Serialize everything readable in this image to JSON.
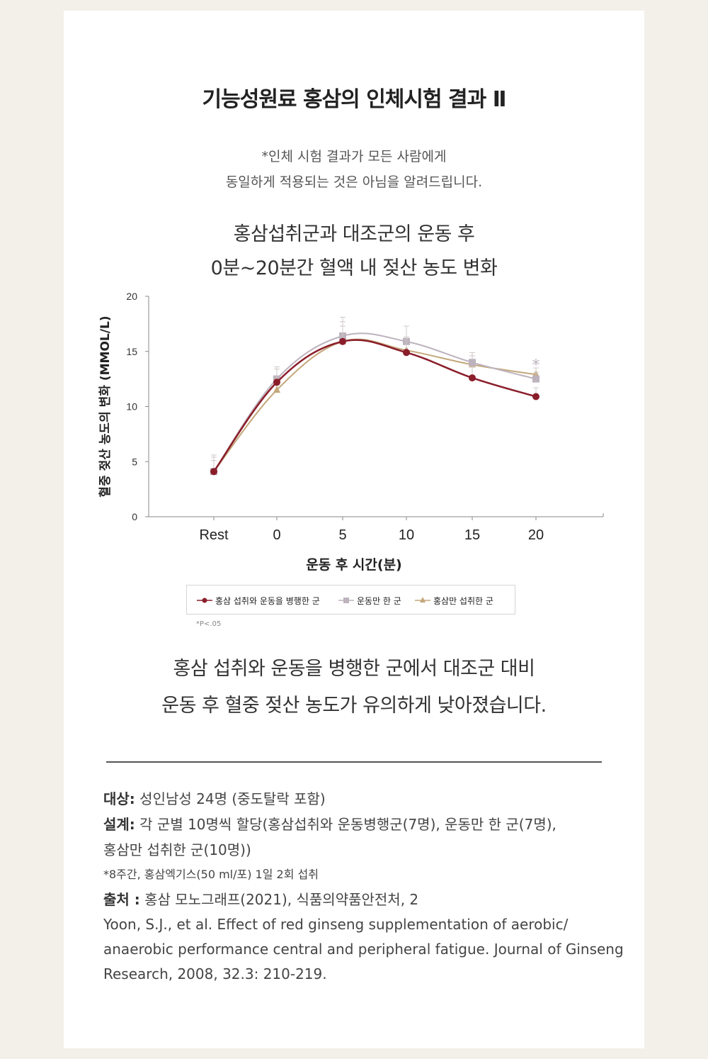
{
  "title": "기능성원료 홍삼의 인체시험 결과 Ⅱ",
  "disclaimer": [
    "*인체 시험 결과가 모든 사람에게",
    "동일하게 적용되는 것은 아님을 알려드립니다."
  ],
  "chart_title": [
    "홍삼섭취군과 대조군의 운동 후",
    "0분~20분간 혈액 내 젖산 농도 변화"
  ],
  "chart_data": {
    "type": "line",
    "categories": [
      "Rest",
      "0",
      "5",
      "10",
      "15",
      "20"
    ],
    "xlabel": "운동 후 시간(분)",
    "ylabel": "혈중 젖산 농도의 변화 (MMOL/L)",
    "ylim": [
      0,
      20
    ],
    "yticks": [
      "0",
      "5",
      "10",
      "15",
      "20"
    ],
    "series": [
      {
        "name": "홍삼 섭취와 운동을 병행한 군",
        "values": [
          4.1,
          12.2,
          15.9,
          14.9,
          12.6,
          10.9
        ],
        "color": "#8b1e2b",
        "marker": "circle"
      },
      {
        "name": "운동만 한 군",
        "values": [
          4.1,
          12.5,
          16.4,
          15.9,
          14.0,
          12.5
        ],
        "color": "#bdb3bd",
        "marker": "square"
      },
      {
        "name": "홍삼만 섭취한 군",
        "values": [
          4.1,
          11.5,
          15.9,
          15.1,
          13.8,
          12.9
        ],
        "color": "#c4a77a",
        "marker": "triangle"
      }
    ],
    "annotation": "*",
    "legend": "bottom"
  },
  "footnote": "*P<.05",
  "summary": [
    "홍삼 섭취와 운동을 병행한 군에서 대조군 대비",
    "운동 후 혈중 젖산 농도가 유의하게 낮아졌습니다."
  ],
  "refs": {
    "subject_label": "대상:",
    "subject_text": " 성인남성 24명 (중도탈락 포함)",
    "design_label": "설계:",
    "design_text": " 각 군별 10명씩 할당(홍삼섭취와 운동병행군(7명), 운동만 한 군(7명),",
    "design_text2": "홍삼만 섭취한 군(10명))",
    "dose": "*8주간, 홍삼엑기스(50 ml/포) 1일 2회 섭취",
    "source_label": "출처 :",
    "source_text": " 홍삼 모노그래프(2021), 식품의약품안전처, 2",
    "citation": "Yoon, S.J., et al. Effect of red ginseng supplementation of aerobic/ anaerobic performance central and peripheral fatigue. Journal of Ginseng Research, 2008, 32.3: 210-219."
  }
}
